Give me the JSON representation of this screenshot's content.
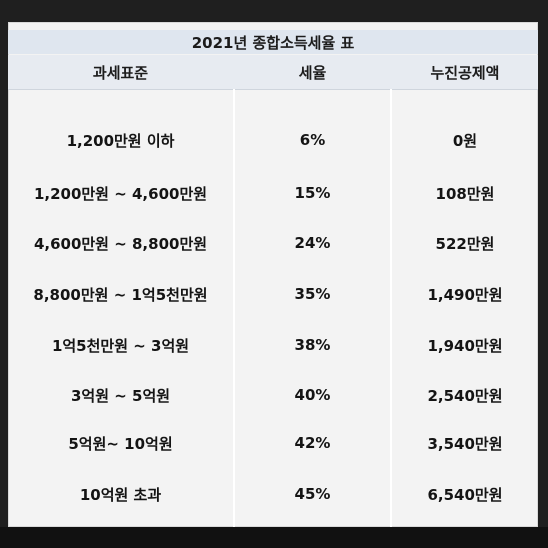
{
  "table": {
    "title": "2021년 종합소득세율 표",
    "headers": [
      "과세표준",
      "세율",
      "누진공제액"
    ],
    "rows": [
      {
        "base": "1,200만원 이하",
        "rate": "6%",
        "deduction": "0원"
      },
      {
        "base": "1,200만원 ~ 4,600만원",
        "rate": "15%",
        "deduction": "108만원"
      },
      {
        "base": "4,600만원 ~ 8,800만원",
        "rate": "24%",
        "deduction": "522만원"
      },
      {
        "base": "8,800만원 ~ 1억5천만원",
        "rate": "35%",
        "deduction": "1,490만원"
      },
      {
        "base": "1억5천만원 ~ 3억원",
        "rate": "38%",
        "deduction": "1,940만원"
      },
      {
        "base": "3억원 ~ 5억원",
        "rate": "40%",
        "deduction": "2,540만원"
      },
      {
        "base": "5억원~ 10억원",
        "rate": "42%",
        "deduction": "3,540만원"
      },
      {
        "base": "10억원 초과",
        "rate": "45%",
        "deduction": "6,540만원"
      }
    ]
  }
}
